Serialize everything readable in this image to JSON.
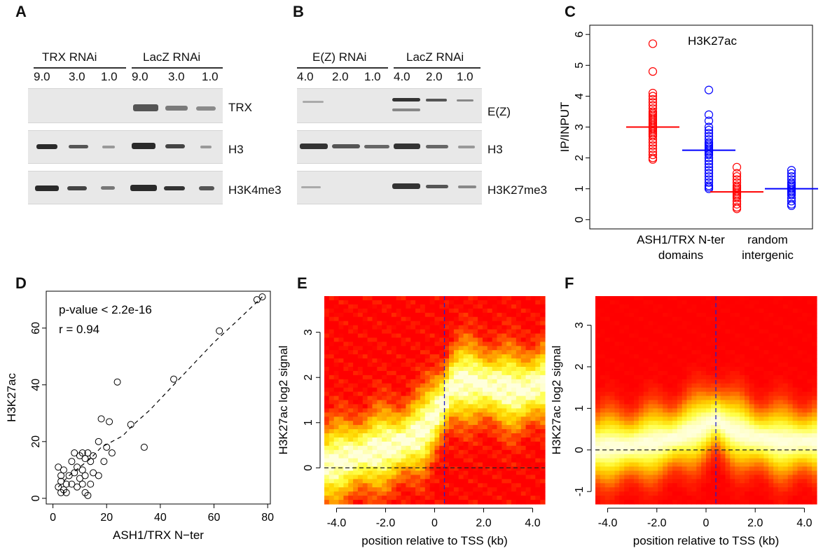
{
  "panels": {
    "A": {
      "label": "A",
      "groups": [
        {
          "name": "TRX RNAi",
          "lanes": [
            "9.0",
            "3.0",
            "1.0"
          ]
        },
        {
          "name": "LacZ RNAi",
          "lanes": [
            "9.0",
            "3.0",
            "1.0"
          ]
        }
      ],
      "blots": [
        "TRX",
        "H3",
        "H3K4me3"
      ]
    },
    "B": {
      "label": "B",
      "groups": [
        {
          "name": "E(Z) RNAi",
          "lanes": [
            "4.0",
            "2.0",
            "1.0"
          ]
        },
        {
          "name": "LacZ RNAi",
          "lanes": [
            "4.0",
            "2.0",
            "1.0"
          ]
        }
      ],
      "blots": [
        "E(Z)",
        "H3",
        "H3K27me3"
      ]
    },
    "C": {
      "label": "C"
    },
    "D": {
      "label": "D"
    },
    "E": {
      "label": "E"
    },
    "F": {
      "label": "F"
    }
  },
  "chart_data": [
    {
      "panel": "C",
      "type": "scatter",
      "title": "H3K27ac",
      "ylabel": "IP/INPUT",
      "ylim": [
        0,
        6
      ],
      "yticks": [
        "0",
        "1",
        "2",
        "3",
        "4",
        "5",
        "6"
      ],
      "categories": [
        "ASH1/TRX N-ter domains",
        "random intergenic"
      ],
      "category_lines": [
        [
          "ASH1/TRX N-ter",
          "domains"
        ],
        [
          "random",
          "intergenic"
        ]
      ],
      "colors": {
        "series1": "#ff0000",
        "series2": "#0000ff"
      },
      "groups": [
        {
          "category": "ASH1/TRX N-ter domains",
          "color": "#ff0000",
          "median": 3.0,
          "values": [
            5.7,
            4.8,
            4.1,
            4.0,
            3.9,
            3.8,
            3.7,
            3.6,
            3.5,
            3.45,
            3.4,
            3.35,
            3.3,
            3.25,
            3.2,
            3.15,
            3.1,
            3.05,
            3.0,
            2.95,
            2.9,
            2.85,
            2.8,
            2.75,
            2.7,
            2.6,
            2.5,
            2.4,
            2.3,
            2.2,
            2.1,
            2.0,
            1.95
          ]
        },
        {
          "category": "ASH1/TRX N-ter domains",
          "color": "#0000ff",
          "median": 2.25,
          "values": [
            4.2,
            3.4,
            3.2,
            3.0,
            2.9,
            2.8,
            2.7,
            2.6,
            2.5,
            2.45,
            2.4,
            2.35,
            2.3,
            2.25,
            2.2,
            2.15,
            2.1,
            2.0,
            1.9,
            1.8,
            1.7,
            1.6,
            1.5,
            1.4,
            1.3,
            1.2,
            1.1,
            1.05,
            1.0
          ]
        },
        {
          "category": "random intergenic",
          "color": "#ff0000",
          "median": 0.9,
          "values": [
            1.7,
            1.5,
            1.4,
            1.3,
            1.2,
            1.1,
            1.05,
            1.0,
            0.95,
            0.9,
            0.85,
            0.8,
            0.75,
            0.7,
            0.6,
            0.5,
            0.4,
            0.35
          ]
        },
        {
          "category": "random intergenic",
          "color": "#0000ff",
          "median": 1.0,
          "values": [
            1.6,
            1.5,
            1.4,
            1.3,
            1.2,
            1.15,
            1.1,
            1.05,
            1.0,
            0.95,
            0.9,
            0.85,
            0.8,
            0.7,
            0.6,
            0.5,
            0.45
          ]
        }
      ]
    },
    {
      "panel": "D",
      "type": "scatter",
      "xlabel": "ASH1/TRX N−ter",
      "ylabel": "H3K27ac",
      "xlim": [
        0,
        80
      ],
      "ylim": [
        0,
        72
      ],
      "xticks": [
        "0",
        "20",
        "40",
        "60",
        "80"
      ],
      "yticks": [
        "0",
        "20",
        "40",
        "60"
      ],
      "annotations": [
        "p-value < 2.2e-16",
        "r = 0.94"
      ],
      "points": [
        [
          2,
          11
        ],
        [
          2,
          4
        ],
        [
          3,
          2
        ],
        [
          3,
          6
        ],
        [
          3,
          8
        ],
        [
          4,
          3
        ],
        [
          4,
          10
        ],
        [
          5,
          2
        ],
        [
          5,
          5
        ],
        [
          6,
          8
        ],
        [
          7,
          13
        ],
        [
          7,
          5
        ],
        [
          8,
          9
        ],
        [
          8,
          16
        ],
        [
          9,
          4
        ],
        [
          9,
          11
        ],
        [
          10,
          7
        ],
        [
          10,
          15
        ],
        [
          11,
          10
        ],
        [
          11,
          16
        ],
        [
          11,
          5
        ],
        [
          12,
          8
        ],
        [
          12,
          14
        ],
        [
          12,
          2
        ],
        [
          13,
          1
        ],
        [
          13,
          16
        ],
        [
          14,
          13
        ],
        [
          14,
          5
        ],
        [
          15,
          15
        ],
        [
          15,
          9
        ],
        [
          17,
          20
        ],
        [
          17,
          8
        ],
        [
          18,
          28
        ],
        [
          19,
          13
        ],
        [
          20,
          18
        ],
        [
          21,
          27
        ],
        [
          22,
          16
        ],
        [
          24,
          41
        ],
        [
          29,
          26
        ],
        [
          34,
          18
        ],
        [
          45,
          42
        ],
        [
          62,
          59
        ],
        [
          76,
          70
        ],
        [
          78,
          71
        ]
      ],
      "smooth": [
        [
          2,
          4
        ],
        [
          6,
          8
        ],
        [
          10,
          11
        ],
        [
          14,
          14
        ],
        [
          18,
          18
        ],
        [
          22,
          20
        ],
        [
          26,
          22
        ],
        [
          30,
          26
        ],
        [
          36,
          31
        ],
        [
          44,
          39
        ],
        [
          52,
          47
        ],
        [
          60,
          55
        ],
        [
          68,
          62
        ],
        [
          78,
          71
        ]
      ]
    },
    {
      "panel": "E",
      "type": "heatmap",
      "xlabel": "position relative to TSS (kb)",
      "ylabel": "H3K27ac log2 signal",
      "xlim": [
        -4.5,
        4.5
      ],
      "ylim": [
        -0.8,
        3.8
      ],
      "xticks": [
        "-4.0",
        "-2.0",
        "0",
        "2.0",
        "4.0"
      ],
      "yticks": [
        "0",
        "1",
        "2",
        "3"
      ],
      "ridge": {
        "x": [
          -4.5,
          -3.0,
          -1.5,
          -0.5,
          0.3,
          0.7,
          1.0,
          1.5,
          2.5,
          3.5,
          4.5
        ],
        "y": [
          0.05,
          0.3,
          0.5,
          0.8,
          1.4,
          1.8,
          1.9,
          1.9,
          1.8,
          1.7,
          1.9
        ]
      },
      "tss_x": 0.4
    },
    {
      "panel": "F",
      "type": "heatmap",
      "xlabel": "position relative to TSS (kb)",
      "ylabel": "H3K27ac log2 signal",
      "xlim": [
        -4.5,
        4.5
      ],
      "ylim": [
        -1.3,
        3.7
      ],
      "xticks": [
        "-4.0",
        "-2.0",
        "0",
        "2.0",
        "4.0"
      ],
      "yticks": [
        "-1",
        "0",
        "1",
        "2",
        "3"
      ],
      "ridge": {
        "x": [
          -4.5,
          -3.0,
          -1.5,
          -0.5,
          0.0,
          0.4,
          1.0,
          2.0,
          3.0,
          4.5
        ],
        "y": [
          0.05,
          0.1,
          0.25,
          0.45,
          0.6,
          0.75,
          0.5,
          0.3,
          0.2,
          0.2
        ]
      },
      "tss_x": 0.4
    }
  ]
}
